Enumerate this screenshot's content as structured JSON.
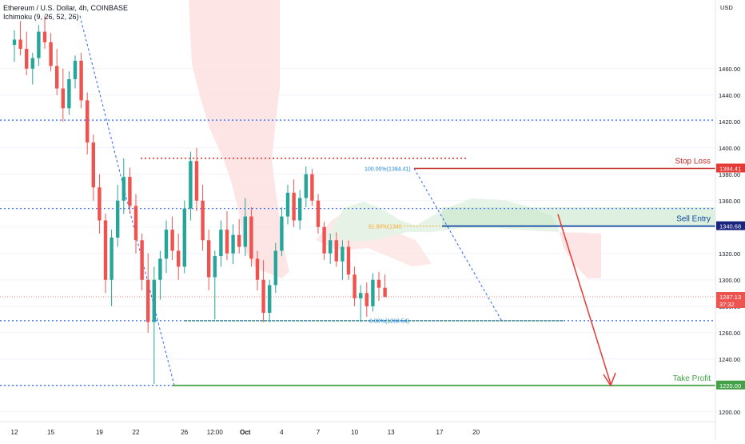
{
  "header": {
    "symbol_line": "Ethereum / U.S. Dollar, 4h, COINBASE",
    "indicator_line": "Ichimoku (9, 26, 52, 26)"
  },
  "colors": {
    "up": "#26a69a",
    "down": "#ef5350",
    "blue_dotted": "#2962ff",
    "red_level": "#e53935",
    "green_level": "#43a047",
    "sell_line": "#1a237e",
    "cloud_red": "#fde0e0",
    "cloud_green": "#e3f3e4",
    "axis_text": "#131722",
    "grid": "#f0f3fa"
  },
  "chart_data": {
    "type": "candlestick",
    "y_axis": {
      "unit_label": "USD",
      "range": [
        1195,
        1512
      ],
      "ticks": [
        1200,
        1220,
        1240,
        1260,
        1280,
        1300,
        1320,
        1340,
        1360,
        1380,
        1400,
        1420,
        1440,
        1460
      ],
      "tick_labels": [
        "1200.00",
        "1220.00",
        "1240.00",
        "1260.00",
        "1280.00",
        "1300.00",
        "1320.00",
        "1340.00",
        "1360.00",
        "1380.00",
        "1400.00",
        "1420.00",
        "1440.00",
        "1460.00"
      ]
    },
    "x_axis": {
      "labels": [
        {
          "text": "12",
          "pos": 0
        },
        {
          "text": "15",
          "pos": 6
        },
        {
          "text": "19",
          "pos": 14
        },
        {
          "text": "22",
          "pos": 20
        },
        {
          "text": "26",
          "pos": 28
        },
        {
          "text": "12:00",
          "pos": 33
        },
        {
          "text": "Oct",
          "pos": 38
        },
        {
          "text": "4",
          "pos": 44
        },
        {
          "text": "7",
          "pos": 50
        },
        {
          "text": "10",
          "pos": 56
        },
        {
          "text": "13",
          "pos": 62
        },
        {
          "text": "17",
          "pos": 70
        },
        {
          "text": "20",
          "pos": 76
        }
      ]
    },
    "price_labels": [
      {
        "text": "1384.41",
        "value": 1384.41,
        "color": "#e53935"
      },
      {
        "text": "1340.68",
        "value": 1340.68,
        "color": "#1a237e"
      },
      {
        "text": "1287.13",
        "text2": "37:32",
        "value": 1287.13,
        "color": "#ef5350"
      },
      {
        "text": "1220.00",
        "value": 1220.0,
        "color": "#43a047"
      }
    ],
    "levels": {
      "stop_loss": {
        "label": "Stop Loss",
        "value": 1384.41
      },
      "sell_entry": {
        "label": "Sell Entry",
        "value": 1340.68
      },
      "take_profit": {
        "label": "Take Profit",
        "value": 1220.0
      },
      "blue_dotted": [
        1421,
        1354,
        1269
      ],
      "red_dotted": 1392,
      "green_dotted": 1269
    },
    "fib_labels": {
      "top": "100.00%(1384.41)",
      "mid": "61.80%(1340",
      "bottom": "0.00%(1268.54)"
    },
    "candles": [
      [
        1478,
        1489,
        1465,
        1482
      ],
      [
        1482,
        1496,
        1470,
        1475
      ],
      [
        1475,
        1488,
        1455,
        1460
      ],
      [
        1460,
        1472,
        1448,
        1468
      ],
      [
        1468,
        1493,
        1462,
        1488
      ],
      [
        1488,
        1500,
        1475,
        1480
      ],
      [
        1480,
        1487,
        1458,
        1462
      ],
      [
        1462,
        1475,
        1440,
        1445
      ],
      [
        1445,
        1460,
        1420,
        1430
      ],
      [
        1430,
        1458,
        1425,
        1452
      ],
      [
        1452,
        1470,
        1445,
        1466
      ],
      [
        1466,
        1472,
        1430,
        1436
      ],
      [
        1436,
        1442,
        1395,
        1404
      ],
      [
        1404,
        1410,
        1360,
        1370
      ],
      [
        1370,
        1380,
        1335,
        1345
      ],
      [
        1345,
        1350,
        1290,
        1300
      ],
      [
        1300,
        1338,
        1280,
        1332
      ],
      [
        1332,
        1372,
        1325,
        1360
      ],
      [
        1360,
        1392,
        1350,
        1378
      ],
      [
        1378,
        1385,
        1350,
        1356
      ],
      [
        1356,
        1365,
        1320,
        1330
      ],
      [
        1330,
        1335,
        1292,
        1300
      ],
      [
        1300,
        1320,
        1260,
        1268
      ],
      [
        1268,
        1310,
        1221,
        1300
      ],
      [
        1300,
        1322,
        1285,
        1316
      ],
      [
        1316,
        1345,
        1305,
        1338
      ],
      [
        1338,
        1348,
        1315,
        1322
      ],
      [
        1322,
        1335,
        1300,
        1310
      ],
      [
        1310,
        1360,
        1305,
        1354
      ],
      [
        1354,
        1397,
        1345,
        1390
      ],
      [
        1390,
        1400,
        1352,
        1360
      ],
      [
        1360,
        1372,
        1322,
        1330
      ],
      [
        1330,
        1338,
        1292,
        1302
      ],
      [
        1302,
        1322,
        1270,
        1318
      ],
      [
        1318,
        1345,
        1310,
        1338
      ],
      [
        1338,
        1352,
        1315,
        1320
      ],
      [
        1320,
        1342,
        1312,
        1334
      ],
      [
        1334,
        1346,
        1320,
        1325
      ],
      [
        1325,
        1362,
        1318,
        1348
      ],
      [
        1348,
        1355,
        1310,
        1316
      ],
      [
        1316,
        1322,
        1292,
        1300
      ],
      [
        1300,
        1315,
        1268,
        1275
      ],
      [
        1275,
        1300,
        1268,
        1296
      ],
      [
        1296,
        1328,
        1290,
        1322
      ],
      [
        1322,
        1355,
        1318,
        1348
      ],
      [
        1348,
        1372,
        1342,
        1366
      ],
      [
        1366,
        1376,
        1340,
        1345
      ],
      [
        1345,
        1368,
        1338,
        1362
      ],
      [
        1362,
        1386,
        1355,
        1380
      ],
      [
        1380,
        1384,
        1356,
        1360
      ],
      [
        1360,
        1365,
        1335,
        1340
      ],
      [
        1340,
        1344,
        1315,
        1320
      ],
      [
        1320,
        1335,
        1312,
        1330
      ],
      [
        1330,
        1336,
        1310,
        1314
      ],
      [
        1314,
        1330,
        1300,
        1325
      ],
      [
        1325,
        1330,
        1300,
        1304
      ],
      [
        1304,
        1310,
        1280,
        1286
      ],
      [
        1286,
        1296,
        1268,
        1290
      ],
      [
        1290,
        1298,
        1272,
        1280
      ],
      [
        1280,
        1305,
        1276,
        1300
      ],
      [
        1300,
        1306,
        1284,
        1294
      ],
      [
        1294,
        1304,
        1288,
        1287
      ]
    ]
  }
}
